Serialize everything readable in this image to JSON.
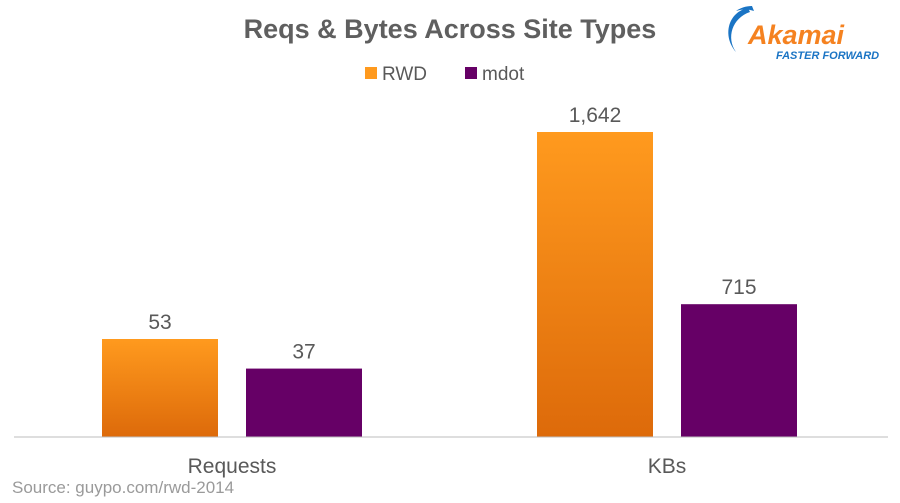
{
  "title": "Reqs & Bytes Across Site Types",
  "source": "Source: guypo.com/rwd-2014",
  "logo": {
    "name": "Akamai",
    "tagline": "FASTER FORWARD"
  },
  "colors": {
    "rwd_top": "#ff9a1e",
    "rwd_bottom": "#dd6a0a",
    "mdot": "#660066",
    "logo_blue": "#1a74c4",
    "logo_orange": "#f58220"
  },
  "chart_data": {
    "type": "bar",
    "categories": [
      "Requests",
      "KBs"
    ],
    "series": [
      {
        "name": "RWD",
        "values": [
          53,
          1642
        ],
        "labels": [
          "53",
          "1,642"
        ]
      },
      {
        "name": "mdot",
        "values": [
          37,
          715
        ],
        "labels": [
          "37",
          "715"
        ]
      }
    ],
    "legend": "top",
    "grid": false,
    "note": "each category plotted on its own scale"
  }
}
